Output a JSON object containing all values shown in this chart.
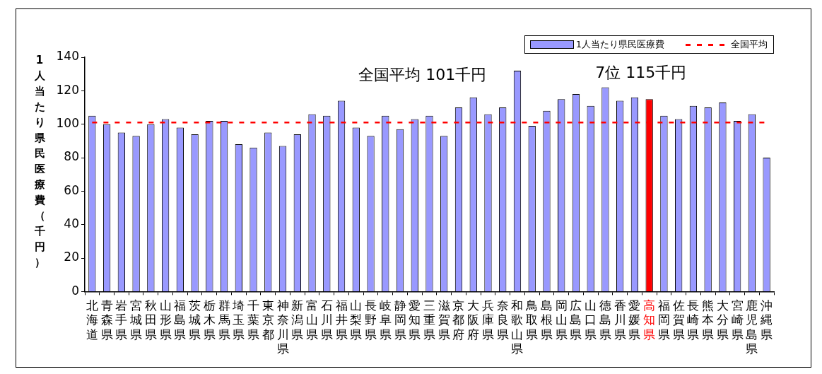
{
  "chart_data": {
    "type": "bar",
    "ylabel": "1人当たり県民医療費（千円）",
    "categories": [
      "北海道",
      "青森県",
      "岩手県",
      "宮城県",
      "秋田県",
      "山形県",
      "福島県",
      "茨城県",
      "栃木県",
      "群馬県",
      "埼玉県",
      "千葉県",
      "東京都",
      "神奈川県",
      "新潟県",
      "富山県",
      "石川県",
      "福井県",
      "山梨県",
      "長野県",
      "岐阜県",
      "静岡県",
      "愛知県",
      "三重県",
      "滋賀県",
      "京都府",
      "大阪府",
      "兵庫県",
      "奈良県",
      "和歌山県",
      "鳥取県",
      "島根県",
      "岡山県",
      "広島県",
      "山口県",
      "徳島県",
      "香川県",
      "愛媛県",
      "高知県",
      "福岡県",
      "佐賀県",
      "長崎県",
      "熊本県",
      "大分県",
      "宮崎県",
      "鹿児島県",
      "沖縄県"
    ],
    "series": [
      {
        "name": "1人当たり県民医療費",
        "color": "#9999ff",
        "colors": [
          "#9999ff",
          "#9999ff",
          "#9999ff",
          "#9999ff",
          "#9999ff",
          "#9999ff",
          "#9999ff",
          "#9999ff",
          "#9999ff",
          "#9999ff",
          "#9999ff",
          "#9999ff",
          "#9999ff",
          "#9999ff",
          "#9999ff",
          "#9999ff",
          "#9999ff",
          "#9999ff",
          "#9999ff",
          "#9999ff",
          "#9999ff",
          "#9999ff",
          "#9999ff",
          "#9999ff",
          "#9999ff",
          "#9999ff",
          "#9999ff",
          "#9999ff",
          "#9999ff",
          "#9999ff",
          "#9999ff",
          "#9999ff",
          "#9999ff",
          "#9999ff",
          "#9999ff",
          "#9999ff",
          "#9999ff",
          "#9999ff",
          "#ff0000",
          "#9999ff",
          "#9999ff",
          "#9999ff",
          "#9999ff",
          "#9999ff",
          "#9999ff",
          "#9999ff",
          "#9999ff"
        ],
        "values": [
          105,
          100,
          95,
          93,
          100,
          103,
          98,
          94,
          102,
          102,
          88,
          86,
          95,
          87,
          94,
          106,
          105,
          114,
          98,
          93,
          105,
          97,
          103,
          105,
          93,
          110,
          116,
          106,
          110,
          132,
          99,
          108,
          115,
          118,
          111,
          122,
          114,
          116,
          115,
          105,
          103,
          111,
          110,
          113,
          102,
          106,
          80
        ]
      }
    ],
    "ylim": [
      0,
      140
    ],
    "yticks": [
      0,
      20,
      40,
      60,
      80,
      100,
      120,
      140
    ],
    "grid": false,
    "legend": "top right",
    "ref_lines": [
      {
        "axis": "y",
        "value": 101,
        "label": "全国平均",
        "color": "#ff0000",
        "line_style": "dashed"
      }
    ],
    "annotations": [
      "全国平均 101千円",
      {
        "text": "7位 115千円",
        "x": "高知県",
        "y": 115
      }
    ]
  }
}
